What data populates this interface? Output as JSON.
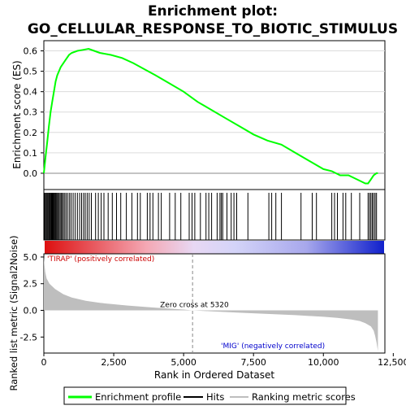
{
  "title_line1": "Enrichment plot:",
  "title_line2": "GO_CELLULAR_RESPONSE_TO_BIOTIC_STIMULUS",
  "colors": {
    "enrichment": "#00ff00",
    "hits": "#000000",
    "metric": "#bebebe",
    "positive_label": "#cc0000",
    "negative_label": "#0000cc",
    "heat_positive": "#ff0000",
    "heat_negative": "#0000ff"
  },
  "legend": {
    "enrichment_label": "Enrichment profile",
    "hits_label": "Hits",
    "metric_label": "Ranking metric scores"
  },
  "chart_data": [
    {
      "type": "line",
      "name": "enrichment_profile",
      "ylabel": "Enrichment score (ES)",
      "xlim": [
        0,
        12000
      ],
      "ylim": [
        -0.08,
        0.65
      ],
      "yticks": [
        0.0,
        0.1,
        0.2,
        0.3,
        0.4,
        0.5,
        0.6
      ],
      "ytick_labels": [
        "0.0",
        "0.1",
        "0.2",
        "0.3",
        "0.4",
        "0.5",
        "0.6"
      ],
      "grid": true,
      "x": [
        0,
        60,
        120,
        180,
        240,
        300,
        360,
        420,
        480,
        540,
        600,
        700,
        800,
        900,
        1000,
        1200,
        1400,
        1600,
        1800,
        2000,
        2400,
        2800,
        3200,
        3600,
        4000,
        4500,
        5000,
        5500,
        6000,
        6500,
        7000,
        7500,
        8000,
        8500,
        9000,
        9500,
        10000,
        10300,
        10600,
        10900,
        11200,
        11500,
        11600,
        11700,
        11800,
        11900,
        11950
      ],
      "y": [
        0.0,
        0.08,
        0.15,
        0.23,
        0.3,
        0.35,
        0.4,
        0.45,
        0.48,
        0.5,
        0.52,
        0.54,
        0.56,
        0.58,
        0.59,
        0.6,
        0.605,
        0.61,
        0.6,
        0.59,
        0.58,
        0.565,
        0.54,
        0.51,
        0.48,
        0.44,
        0.4,
        0.35,
        0.31,
        0.27,
        0.23,
        0.19,
        0.16,
        0.14,
        0.1,
        0.06,
        0.02,
        0.01,
        -0.01,
        -0.01,
        -0.03,
        -0.05,
        -0.05,
        -0.03,
        -0.01,
        0.0,
        0.0
      ]
    },
    {
      "type": "scatter",
      "name": "hits",
      "x": [
        20,
        50,
        80,
        110,
        140,
        170,
        200,
        230,
        260,
        290,
        320,
        350,
        380,
        410,
        440,
        470,
        500,
        540,
        580,
        620,
        660,
        700,
        750,
        800,
        860,
        920,
        980,
        1050,
        1120,
        1200,
        1280,
        1350,
        1420,
        1480,
        1550,
        1620,
        1700,
        1850,
        1950,
        2050,
        2150,
        2300,
        2450,
        2600,
        2750,
        2950,
        3150,
        3350,
        3450,
        3700,
        3800,
        3900,
        4100,
        4200,
        4500,
        4700,
        4900,
        5200,
        5300,
        5400,
        5600,
        5800,
        5900,
        6000,
        6200,
        6300,
        6350,
        6400,
        6550,
        6700,
        6800,
        6900,
        7300,
        8050,
        8150,
        8300,
        8500,
        9200,
        9600,
        9750,
        10300,
        10400,
        10500,
        10700,
        10800,
        11000,
        11300,
        11600,
        11650,
        11700,
        11750,
        11800,
        11850,
        11900
      ]
    },
    {
      "type": "area",
      "name": "ranked_list_metric",
      "ylabel": "Ranked list metric (Signal2Noise)",
      "xlabel": "Rank in Ordered Dataset",
      "xlim": [
        0,
        12000
      ],
      "ylim": [
        -4.0,
        5.3
      ],
      "xticks": [
        0,
        2500,
        5000,
        7500,
        10000,
        12500
      ],
      "xtick_labels": [
        "0",
        "2,500",
        "5,000",
        "7,500",
        "10,000",
        "12,500"
      ],
      "yticks": [
        5.0,
        2.5,
        0.0,
        -2.5
      ],
      "ytick_labels": [
        "5.0",
        "2.5",
        "0.0",
        "-2.5"
      ],
      "x": [
        0,
        20,
        50,
        100,
        200,
        400,
        700,
        1000,
        1500,
        2000,
        3000,
        4000,
        5000,
        5320,
        6000,
        7000,
        8000,
        9000,
        10000,
        10500,
        11000,
        11300,
        11500,
        11700,
        11800,
        11850,
        11900,
        11950
      ],
      "y": [
        5.0,
        4.3,
        3.6,
        3.0,
        2.5,
        2.0,
        1.5,
        1.2,
        0.9,
        0.7,
        0.45,
        0.25,
        0.08,
        0.0,
        -0.1,
        -0.22,
        -0.33,
        -0.45,
        -0.6,
        -0.7,
        -0.85,
        -1.0,
        -1.2,
        -1.5,
        -1.9,
        -2.4,
        -3.0,
        -3.8
      ],
      "zero_cross_label": "Zero cross at 5320",
      "zero_cross_rank": 5320,
      "positive_label": "'TIRAP' (positively correlated)",
      "negative_label": "'MIG' (negatively correlated)"
    }
  ]
}
